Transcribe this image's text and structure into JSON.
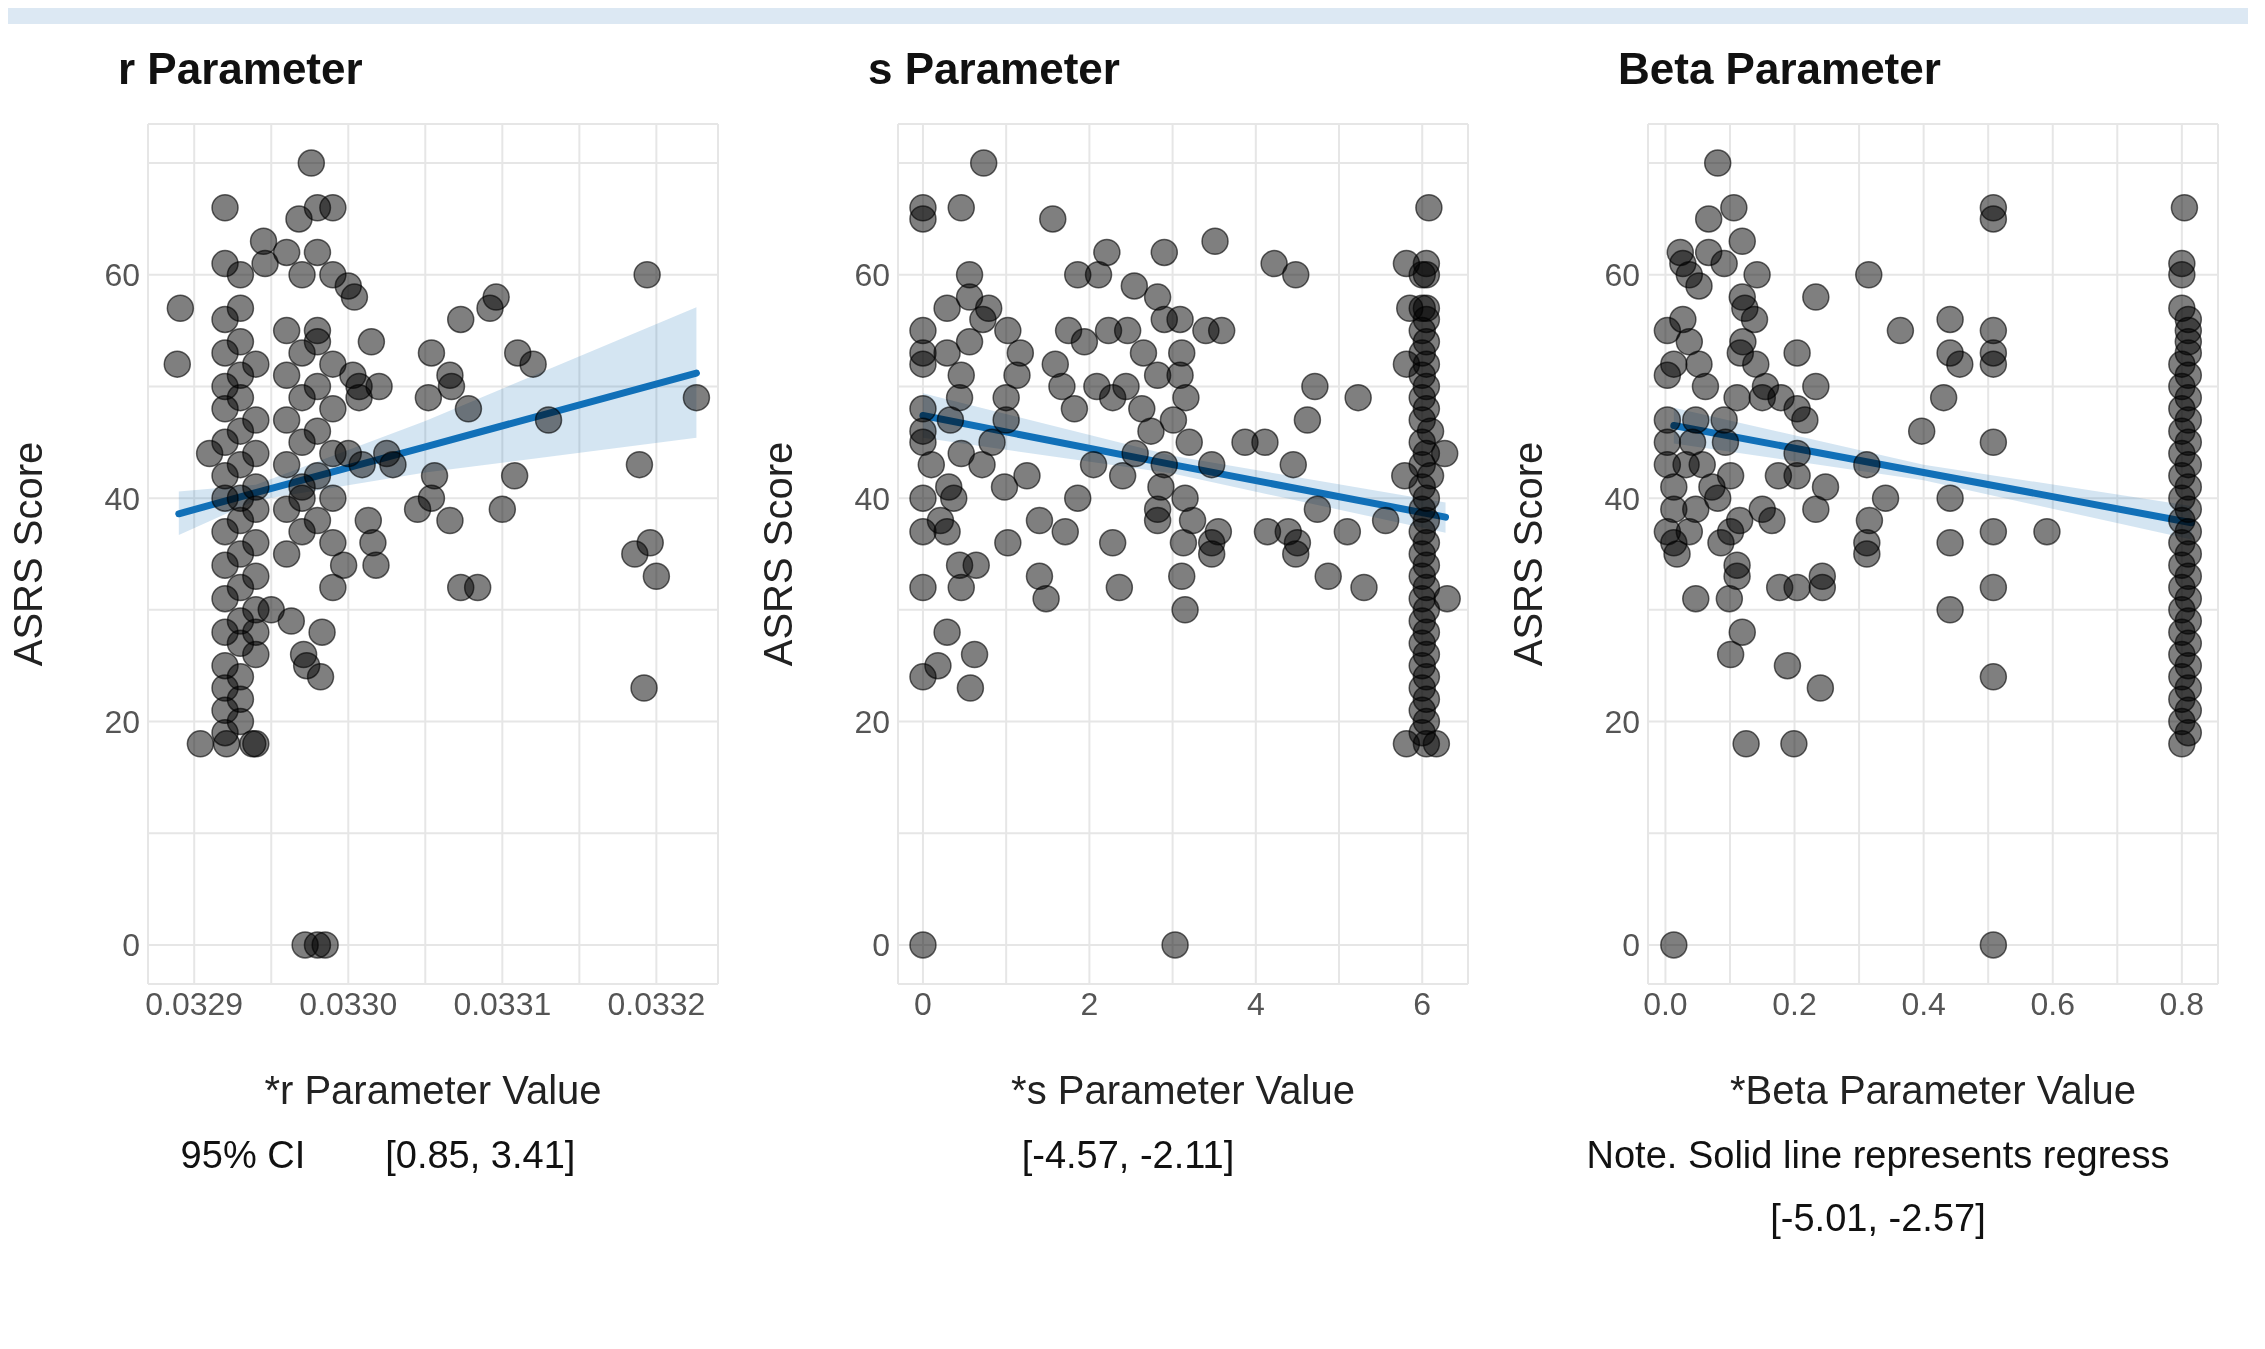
{
  "chart_data": [
    {
      "type": "scatter",
      "title": "r Parameter",
      "xlabel": "*r Parameter Value",
      "ylabel": "ASRS Score",
      "grid": true,
      "xlim": [
        0.03287,
        0.03324
      ],
      "xticks": [
        0.0329,
        {
          "value": 0.03295,
          "label": null
        },
        {
          "value": 0.033,
          "label": "0.0330"
        },
        {
          "value": 0.03305,
          "label": null
        },
        0.0331,
        {
          "value": 0.03315,
          "label": null
        },
        0.0332
      ],
      "ylim": [
        -3.5,
        73.5
      ],
      "yticks": [
        0,
        {
          "value": 10,
          "label": null
        },
        20,
        {
          "value": 30,
          "label": null
        },
        40,
        {
          "value": 50,
          "label": null
        },
        60,
        {
          "value": 70,
          "label": null
        }
      ],
      "annotations": [
        "95% CI",
        "[0.85, 3.41]"
      ],
      "series": [
        {
          "marker": "circle",
          "color": "#000000",
          "x": [
            0.032891,
            0.032889,
            0.032904,
            0.032921,
            0.032938,
            0.03294,
            0.03292,
            0.03292,
            0.03293,
            0.03293,
            0.03292,
            0.03293,
            0.03292,
            0.03294,
            0.03293,
            0.03292,
            0.03293,
            0.03292,
            0.03294,
            0.03293,
            0.03292,
            0.03294,
            0.03291,
            0.03293,
            0.03292,
            0.03294,
            0.03293,
            0.03292,
            0.03294,
            0.03293,
            0.03292,
            0.03294,
            0.03293,
            0.03292,
            0.03294,
            0.03293,
            0.03292,
            0.03294,
            0.03293,
            0.03292,
            0.03294,
            0.03293,
            0.03294,
            0.03292,
            0.03293,
            0.03292,
            0.03293,
            0.03292,
            0.03293,
            0.03292,
            0.032976,
            0.03299,
            0.032968,
            0.03298,
            0.032945,
            0.03296,
            0.03298,
            0.032946,
            0.03297,
            0.03299,
            0.033,
            0.033004,
            0.033015,
            0.033003,
            0.033007,
            0.033007,
            0.032997,
            0.03299,
            0.03295,
            0.032963,
            0.032983,
            0.032971,
            0.032973,
            0.032982,
            0.032972,
            0.03298,
            0.032985,
            0.03296,
            0.03298,
            0.03297,
            0.03299,
            0.03296,
            0.03298,
            0.03297,
            0.03299,
            0.03296,
            0.03298,
            0.03297,
            0.03299,
            0.03296,
            0.03298,
            0.03297,
            0.03299,
            0.03296,
            0.03298,
            0.03297,
            0.03299,
            0.03296,
            0.03297,
            0.03298,
            0.033,
            0.03302,
            0.033025,
            0.033029,
            0.033013,
            0.033016,
            0.033018,
            0.033054,
            0.033052,
            0.033066,
            0.033067,
            0.033078,
            0.033073,
            0.033092,
            0.033096,
            0.033056,
            0.033054,
            0.033045,
            0.033066,
            0.033073,
            0.033084,
            0.033009,
            0.0331,
            0.033108,
            0.03311,
            0.03312,
            0.03313,
            0.033194,
            0.033189,
            0.033186,
            0.033196,
            0.0332,
            0.033192,
            0.033226
          ],
          "values": [
            57,
            52,
            18,
            18,
            18,
            18,
            66,
            61,
            60,
            57,
            56,
            54,
            53,
            52,
            51,
            50,
            49,
            48,
            47,
            46,
            45,
            44,
            44,
            43,
            42,
            41,
            40,
            40,
            39,
            38,
            37,
            36,
            35,
            34,
            33,
            32,
            31,
            30,
            29,
            28,
            28,
            27,
            26,
            25,
            24,
            23,
            22,
            21,
            20,
            19,
            70,
            66,
            65,
            66,
            63,
            62,
            62,
            61,
            60,
            60,
            59,
            58,
            54,
            51,
            50,
            49,
            34,
            32,
            30,
            29,
            28,
            26,
            25,
            24,
            0,
            0,
            0,
            55,
            54,
            53,
            52,
            51,
            50,
            49,
            48,
            47,
            46,
            45,
            44,
            43,
            42,
            41,
            40,
            39,
            38,
            37,
            36,
            35,
            40,
            55,
            44,
            50,
            44,
            43,
            38,
            36,
            34,
            53,
            49,
            51,
            50,
            48,
            56,
            57,
            58,
            42,
            40,
            39,
            38,
            32,
            32,
            43,
            39,
            42,
            53,
            52,
            47,
            60,
            43,
            35,
            36,
            33,
            23,
            49
          ]
        },
        {
          "type": "line",
          "color": "#1170b8",
          "x": [
            0.03289,
            0.03294,
            0.03305,
            0.033226
          ],
          "values": [
            38.6,
            40.5,
            44.6,
            51.2
          ],
          "lower": [
            36.7,
            39.8,
            42.3,
            45.4
          ],
          "upper": [
            40.6,
            41.2,
            46.9,
            57.1
          ]
        }
      ]
    },
    {
      "type": "scatter",
      "title": "s Parameter",
      "xlabel": "*s Parameter Value",
      "ylabel": "ASRS Score",
      "grid": true,
      "xlim": [
        -0.3,
        6.55
      ],
      "xticks": [
        0,
        {
          "value": 1,
          "label": null
        },
        2,
        {
          "value": 3,
          "label": null
        },
        4,
        {
          "value": 5,
          "label": null
        },
        6
      ],
      "ylim": [
        -3.5,
        73.5
      ],
      "yticks": [
        0,
        {
          "value": 10,
          "label": null
        },
        20,
        {
          "value": 30,
          "label": null
        },
        40,
        {
          "value": 50,
          "label": null
        },
        60,
        {
          "value": 70,
          "label": null
        }
      ],
      "annotations": [
        "[-4.57, -2.11]"
      ],
      "series": [
        {
          "marker": "circle",
          "color": "#000000",
          "x": [
            0,
            0,
            0.46,
            0.73,
            1.56,
            0,
            0,
            0,
            0,
            0,
            0,
            0.1,
            0,
            0,
            0,
            0,
            0.18,
            0.29,
            0.62,
            0.57,
            0.46,
            0.44,
            0.64,
            0.29,
            0.21,
            0.37,
            0.31,
            0.46,
            0.33,
            0.44,
            0.46,
            0.29,
            0.56,
            0.29,
            0.56,
            0.56,
            0.79,
            0.72,
            1.02,
            1.17,
            1.13,
            1.0,
            1.0,
            0.83,
            0.71,
            0.98,
            1.25,
            1.02,
            1.4,
            1.4,
            1.48,
            1.71,
            1.59,
            1.67,
            1.82,
            1.75,
            1.94,
            1.86,
            2.11,
            1.86,
            2.05,
            2.21,
            2.23,
            2.09,
            2.28,
            2.44,
            2.46,
            2.54,
            2.65,
            2.63,
            2.74,
            2.55,
            2.4,
            2.28,
            2.36,
            2.82,
            2.9,
            2.9,
            3.09,
            2.82,
            3.09,
            3.11,
            3.16,
            3.01,
            3.2,
            2.9,
            2.86,
            2.82,
            2.82,
            3.15,
            3.24,
            3.13,
            3.11,
            3.15,
            3.51,
            3.4,
            3.59,
            3.47,
            3.55,
            3.47,
            3.47,
            3.87,
            4.11,
            4.22,
            4.48,
            4.45,
            4.14,
            4.39,
            4.5,
            4.48,
            4.71,
            4.62,
            4.74,
            4.87,
            5.1,
            5.23,
            5.3,
            5.56,
            5.81,
            5.81,
            5.79,
            5.85,
            0,
            3.03,
            6.08,
            6.05,
            6.05,
            6.0,
            6.0,
            6.05,
            6.05,
            6.0,
            6.05,
            6.0,
            6.05,
            6.0,
            6.05,
            6.0,
            6.05,
            6.0,
            6.1,
            6.0,
            6.05,
            6.0,
            6.1,
            6.0,
            6.05,
            6.0,
            6.05,
            6.0,
            6.05,
            6.0,
            6.05,
            6.0,
            6.05,
            6.0,
            6.05,
            6.0,
            6.05,
            6.0,
            6.05,
            6.0,
            6.05,
            6.0,
            6.05,
            6.0,
            6.05,
            6.0,
            6.05,
            6.17,
            5.81,
            6.27,
            6.3
          ],
          "values": [
            66,
            65,
            66,
            70,
            65,
            55,
            52,
            53,
            48,
            46,
            45,
            43,
            40,
            37,
            32,
            24,
            25,
            28,
            26,
            23,
            32,
            34,
            34,
            37,
            38,
            40,
            41,
            44,
            47,
            49,
            51,
            53,
            54,
            57,
            58,
            60,
            57,
            56,
            55,
            53,
            51,
            49,
            47,
            45,
            43,
            41,
            42,
            36,
            38,
            33,
            31,
            37,
            52,
            50,
            48,
            55,
            54,
            60,
            60,
            40,
            43,
            62,
            55,
            50,
            49,
            50,
            55,
            59,
            53,
            48,
            46,
            44,
            42,
            36,
            32,
            58,
            62,
            56,
            56,
            51,
            51,
            53,
            49,
            47,
            45,
            43,
            41,
            39,
            38,
            40,
            38,
            36,
            33,
            30,
            63,
            55,
            55,
            43,
            37,
            36,
            35,
            45,
            45,
            61,
            60,
            43,
            37,
            37,
            36,
            35,
            50,
            47,
            39,
            33,
            37,
            49,
            32,
            38,
            61,
            52,
            42,
            57,
            0,
            0,
            66,
            61,
            60,
            60,
            57,
            57,
            56,
            55,
            54,
            53,
            52,
            51,
            50,
            49,
            48,
            47,
            46,
            45,
            44,
            43,
            42,
            41,
            40,
            39,
            38,
            37,
            36,
            35,
            34,
            33,
            32,
            31,
            30,
            29,
            28,
            27,
            26,
            25,
            24,
            23,
            22,
            21,
            20,
            19,
            18,
            18,
            18,
            44,
            31
          ]
        },
        {
          "type": "line",
          "color": "#1170b8",
          "x": [
            0,
            3,
            6.28
          ],
          "values": [
            47.4,
            43.0,
            38.3
          ],
          "lower": [
            45.4,
            42.2,
            36.9
          ],
          "upper": [
            49.4,
            43.8,
            39.6
          ]
        }
      ]
    },
    {
      "type": "scatter",
      "title": "Beta Parameter",
      "xlabel": "*Beta Parameter Value",
      "ylabel": "ASRS Score",
      "grid": true,
      "xlim": [
        -0.027,
        0.856
      ],
      "xticks": [
        {
          "value": 0,
          "label": "0.0"
        },
        {
          "value": 0.1,
          "label": null
        },
        0.2,
        {
          "value": 0.3,
          "label": null
        },
        0.4,
        {
          "value": 0.5,
          "label": null
        },
        0.6,
        {
          "value": 0.7,
          "label": null
        },
        0.8
      ],
      "ylim": [
        -3.5,
        73.5
      ],
      "yticks": [
        0,
        {
          "value": 10,
          "label": null
        },
        20,
        {
          "value": 30,
          "label": null
        },
        40,
        {
          "value": 50,
          "label": null
        },
        60,
        {
          "value": 70,
          "label": null
        }
      ],
      "annotations": [
        "Note. Solid line represents regress",
        "[-5.01, -2.57]"
      ],
      "series": [
        {
          "marker": "circle",
          "color": "#000000",
          "x": [
            0.081,
            0.106,
            0.067,
            0.119,
            0.091,
            0.067,
            0.023,
            0.027,
            0.037,
            0.052,
            0.142,
            0.119,
            0.123,
            0.138,
            0.233,
            0.315,
            0.364,
            0.441,
            0.441,
            0.456,
            0.431,
            0.397,
            0.204,
            0.233,
            0.216,
            0.204,
            0.179,
            0.15,
            0.155,
            0.14,
            0.116,
            0.12,
            0.003,
            0.027,
            0.013,
            0.003,
            0.003,
            0.003,
            0.003,
            0.013,
            0.013,
            0.003,
            0.013,
            0.018,
            0.037,
            0.047,
            0.057,
            0.072,
            0.081,
            0.101,
            0.093,
            0.091,
            0.111,
            0.062,
            0.052,
            0.037,
            0.047,
            0.042,
            0.032,
            0.101,
            0.086,
            0.115,
            0.111,
            0.111,
            0.047,
            0.099,
            0.119,
            0.101,
            0.125,
            0.199,
            0.15,
            0.165,
            0.175,
            0.204,
            0.204,
            0.248,
            0.233,
            0.177,
            0.204,
            0.243,
            0.243,
            0.189,
            0.24,
            0.312,
            0.341,
            0.316,
            0.312,
            0.312,
            0.441,
            0.441,
            0.441,
            0.508,
            0.508,
            0.508,
            0.508,
            0.508,
            0.508,
            0.508,
            0.508,
            0.508,
            0.591,
            0.013,
            0.508,
            0.804,
            0.8,
            0.8,
            0.8,
            0.81,
            0.81,
            0.81,
            0.81,
            0.8,
            0.81,
            0.8,
            0.81,
            0.8,
            0.81,
            0.8,
            0.81,
            0.8,
            0.81,
            0.8,
            0.81,
            0.8,
            0.81,
            0.8,
            0.81,
            0.8,
            0.81,
            0.8,
            0.81,
            0.8,
            0.81,
            0.8,
            0.81,
            0.8,
            0.81,
            0.8,
            0.81,
            0.8,
            0.81,
            0.8,
            0.81,
            0.8,
            0.81,
            0.8
          ],
          "values": [
            70,
            66,
            65,
            63,
            61,
            62,
            62,
            61,
            60,
            59,
            60,
            58,
            57,
            56,
            58,
            60,
            55,
            56,
            53,
            52,
            49,
            46,
            53,
            50,
            47,
            48,
            49,
            49,
            50,
            52,
            53,
            54,
            55,
            56,
            52,
            51,
            47,
            45,
            43,
            41,
            39,
            37,
            36,
            35,
            37,
            39,
            43,
            41,
            40,
            42,
            45,
            47,
            49,
            50,
            52,
            54,
            47,
            45,
            43,
            37,
            36,
            38,
            34,
            33,
            31,
            31,
            28,
            26,
            18,
            18,
            39,
            38,
            42,
            44,
            42,
            41,
            39,
            32,
            32,
            33,
            32,
            25,
            23,
            43,
            40,
            38,
            36,
            35,
            40,
            36,
            30,
            66,
            65,
            55,
            53,
            52,
            45,
            37,
            32,
            24,
            37,
            0,
            0,
            66,
            61,
            60,
            57,
            56,
            55,
            54,
            53,
            52,
            51,
            50,
            49,
            48,
            47,
            46,
            45,
            44,
            43,
            42,
            41,
            40,
            39,
            38,
            37,
            36,
            35,
            34,
            33,
            32,
            31,
            30,
            29,
            28,
            27,
            26,
            25,
            24,
            23,
            22,
            21,
            20,
            19,
            18
          ]
        },
        {
          "type": "line",
          "color": "#1170b8",
          "x": [
            0.013,
            0.4,
            0.815
          ],
          "values": [
            46.5,
            42.3,
            37.8
          ],
          "lower": [
            44.9,
            41.6,
            36.3
          ],
          "upper": [
            48.1,
            43.0,
            39.3
          ]
        }
      ]
    }
  ]
}
